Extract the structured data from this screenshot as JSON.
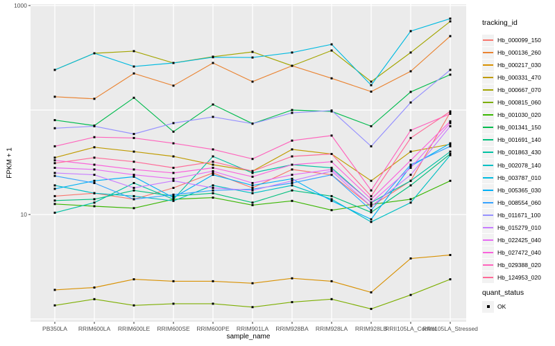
{
  "chart_data": {
    "type": "line",
    "title": "",
    "xlabel": "sample_name",
    "ylabel": "FPKM + 1",
    "y_scale": "log10",
    "ylim": [
      1,
      1000
    ],
    "y_gridline_values": [
      1,
      10,
      100,
      1000
    ],
    "y_tick_labels": [
      "1000",
      "10"
    ],
    "y_tick_values": [
      1000,
      10
    ],
    "grid": "major white on grey panel",
    "legend_position": "right",
    "point_marker": "small black square (quant_status OK)",
    "categories": [
      "PB350LA",
      "RRIM600LA",
      "RRIM600LE",
      "RRIM600SE",
      "RRIM600PE",
      "RRIM901LA",
      "RRIM928BA",
      "RRIM928LA",
      "RRIM928LB",
      "RRII105LA_Control",
      "RRII105LA_Stressed"
    ],
    "series": [
      {
        "name": "Hb_000099_150",
        "color": "#F8766D",
        "values": [
          15,
          16,
          14,
          18,
          25,
          18,
          27,
          24,
          12,
          21,
          95
        ]
      },
      {
        "name": "Hb_000136_260",
        "color": "#EA8331",
        "values": [
          134,
          128,
          224,
          171,
          282,
          187,
          265,
          201,
          150,
          235,
          510
        ]
      },
      {
        "name": "Hb_000217_030",
        "color": "#D89000",
        "values": [
          1.9,
          2.0,
          2.4,
          2.3,
          2.3,
          2.2,
          2.45,
          2.3,
          1.8,
          3.8,
          4.1
        ]
      },
      {
        "name": "Hb_000331_470",
        "color": "#C09B00",
        "values": [
          35,
          44,
          40,
          36,
          30,
          26,
          42,
          38,
          21,
          40,
          47
        ]
      },
      {
        "name": "Hb_000667_070",
        "color": "#A3A500",
        "values": [
          242,
          349,
          366,
          282,
          324,
          360,
          265,
          371,
          187,
          355,
          705
        ]
      },
      {
        "name": "Hb_000815_060",
        "color": "#7CAE00",
        "values": [
          1.35,
          1.55,
          1.35,
          1.4,
          1.4,
          1.3,
          1.45,
          1.55,
          1.25,
          1.7,
          2.4
        ]
      },
      {
        "name": "Hb_001030_020",
        "color": "#39B600",
        "values": [
          12.6,
          12,
          11.5,
          14,
          14.5,
          12.3,
          13.5,
          11,
          12.5,
          14,
          21
        ]
      },
      {
        "name": "Hb_001341_150",
        "color": "#00BB4E",
        "values": [
          80,
          71,
          131,
          62,
          113,
          74,
          100,
          97,
          70,
          149,
          218
        ]
      },
      {
        "name": "Hb_001691_140",
        "color": "#00BF7D",
        "values": [
          13.6,
          14,
          17,
          15,
          16,
          13,
          17,
          15,
          10.5,
          19,
          38
        ]
      },
      {
        "name": "Hb_001863_430",
        "color": "#00C1A3",
        "values": [
          10.4,
          13,
          20,
          14,
          36,
          25,
          30,
          28,
          13,
          21,
          40
        ]
      },
      {
        "name": "Hb_002078_140",
        "color": "#00BFC4",
        "values": [
          19,
          16,
          15,
          13.5,
          19,
          16,
          19,
          14,
          8.5,
          13,
          37
        ]
      },
      {
        "name": "Hb_003787_010",
        "color": "#00BAE0",
        "values": [
          242,
          349,
          261,
          282,
          320,
          318,
          355,
          425,
          173,
          569,
          750
        ]
      },
      {
        "name": "Hb_005365_030",
        "color": "#00B0F6",
        "values": [
          17.6,
          21,
          23,
          14.5,
          24,
          19,
          22,
          13.5,
          9,
          29,
          48
        ]
      },
      {
        "name": "Hb_008554_060",
        "color": "#35A2FF",
        "values": [
          23.4,
          20,
          14,
          15.5,
          17,
          17.5,
          20,
          24,
          11,
          30,
          45
        ]
      },
      {
        "name": "Hb_011671_100",
        "color": "#9590FF",
        "values": [
          67,
          70,
          59,
          75,
          86,
          74,
          94,
          99,
          45,
          118,
          242
        ]
      },
      {
        "name": "Hb_015279_010",
        "color": "#C77CFF",
        "values": [
          25,
          24,
          18,
          21,
          18,
          17,
          21,
          26,
          12,
          24,
          70
        ]
      },
      {
        "name": "Hb_022425_040",
        "color": "#E76BF3",
        "values": [
          28,
          27,
          24,
          22,
          26,
          20,
          24,
          27,
          13,
          28,
          75
        ]
      },
      {
        "name": "Hb_027472_040",
        "color": "#FA62DB",
        "values": [
          33,
          30,
          27,
          25,
          28,
          23,
          30,
          32,
          14,
          33,
          78
        ]
      },
      {
        "name": "Hb_029388_020",
        "color": "#FF62BC",
        "values": [
          45,
          55,
          54,
          48,
          42,
          34,
          51,
          57,
          17,
          64,
          92
        ]
      },
      {
        "name": "Hb_124953_020",
        "color": "#FF6A98",
        "values": [
          31,
          35,
          32,
          28,
          32,
          26,
          36,
          38,
          15,
          54,
          97
        ]
      }
    ],
    "legend": {
      "tracking_title": "tracking_id",
      "quant_title": "quant_status",
      "quant_items": [
        {
          "label": "OK",
          "marker": "black-square"
        }
      ]
    },
    "colors": {
      "panel_bg": "#EBEBEB",
      "grid": "#FFFFFF",
      "marker": "#000000",
      "tick_text": "#4D4D4D",
      "tick_mark": "#333333"
    }
  }
}
